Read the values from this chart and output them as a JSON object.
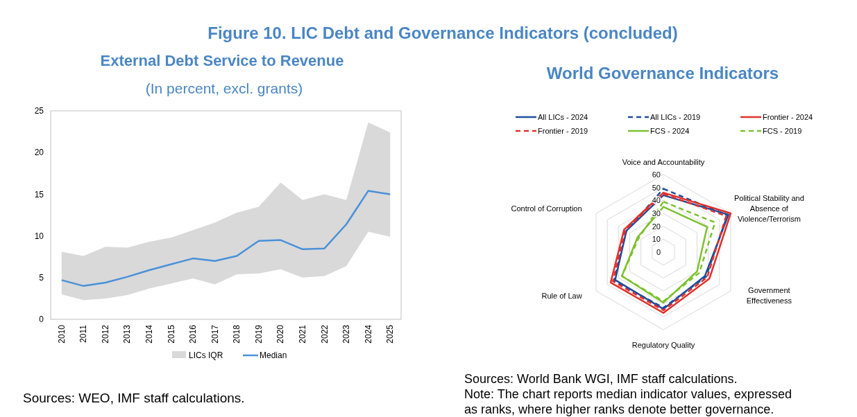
{
  "chart_data": [
    {
      "type": "line",
      "title": "External Debt Service to Revenue",
      "subtitle": "(In percent, excl. grants)",
      "categories": [
        "2010",
        "2011",
        "2012",
        "2013",
        "2014",
        "2015",
        "2016",
        "2017",
        "2018",
        "2019",
        "2020",
        "2021",
        "2022",
        "2023",
        "2024",
        "2025"
      ],
      "series": [
        {
          "name": "LICs IQR",
          "type": "area",
          "color": "#d9d9d9",
          "values": [
            null,
            null,
            null,
            null,
            null,
            null,
            null,
            null,
            null,
            null,
            null,
            null,
            null,
            null,
            null,
            null
          ],
          "upper": [
            8.1,
            7.6,
            8.7,
            8.6,
            9.3,
            9.8,
            10.7,
            11.6,
            12.8,
            13.5,
            16.4,
            14.3,
            15.0,
            14.3,
            23.6,
            22.4
          ],
          "lower": [
            3.0,
            2.3,
            2.5,
            2.9,
            3.7,
            4.3,
            4.9,
            4.2,
            5.4,
            5.5,
            6.0,
            5.0,
            5.2,
            6.4,
            10.5,
            9.9
          ]
        },
        {
          "name": "Median",
          "type": "line",
          "color": "#4a90d9",
          "values": [
            4.7,
            4.0,
            4.4,
            5.1,
            5.9,
            6.6,
            7.3,
            7.0,
            7.6,
            9.4,
            9.5,
            8.4,
            8.5,
            11.4,
            15.4,
            15.0
          ]
        }
      ],
      "ylim": [
        0,
        25
      ],
      "yticks": [
        0,
        5,
        10,
        15,
        20,
        25
      ],
      "grid": false,
      "legend": "bottom",
      "annotations": [
        "Figure 10. LIC Debt and Governance Indicators (concluded)",
        "Sources: WEO, IMF staff calculations."
      ]
    },
    {
      "type": "radar",
      "title": "World Governance Indicators",
      "categories": [
        "Voice and Accountability",
        "Political Stability and Absence of Violence/Terrorism",
        "Government Effectiveness",
        "Regulatory Quality",
        "Rule of Law",
        "Control of Corruption"
      ],
      "series": [
        {
          "name": "All LICs - 2024",
          "color": "#1f4e9c",
          "line_style": "solid",
          "values": [
            44,
            58,
            37,
            44,
            43,
            33
          ]
        },
        {
          "name": "All LICs - 2019",
          "color": "#1f4e9c",
          "line_style": "dashed",
          "values": [
            49,
            57,
            38,
            43,
            44,
            33
          ]
        },
        {
          "name": "Frontier - 2024",
          "color": "#e0302a",
          "line_style": "solid",
          "values": [
            46,
            60,
            41,
            47,
            47,
            35
          ]
        },
        {
          "name": "Frontier - 2019",
          "color": "#e0302a",
          "line_style": "dashed",
          "values": [
            45,
            56,
            39,
            45,
            45,
            34
          ]
        },
        {
          "name": "FCS - 2024",
          "color": "#7dc12f",
          "line_style": "solid",
          "values": [
            35,
            39,
            30,
            39,
            37,
            23
          ]
        },
        {
          "name": "FCS - 2019",
          "color": "#7dc12f",
          "line_style": "dashed",
          "values": [
            39,
            46,
            32,
            38,
            37,
            22
          ]
        }
      ],
      "ylim": [
        0,
        60
      ],
      "yticks": [
        0,
        10,
        20,
        30,
        40,
        50,
        60
      ],
      "grid": true,
      "legend": "top",
      "annotations": [
        "Sources: World Bank WGI, IMF staff calculations.",
        "Note: The chart reports median indicator values, expressed as ranks, where higher ranks denote better governance."
      ]
    }
  ]
}
